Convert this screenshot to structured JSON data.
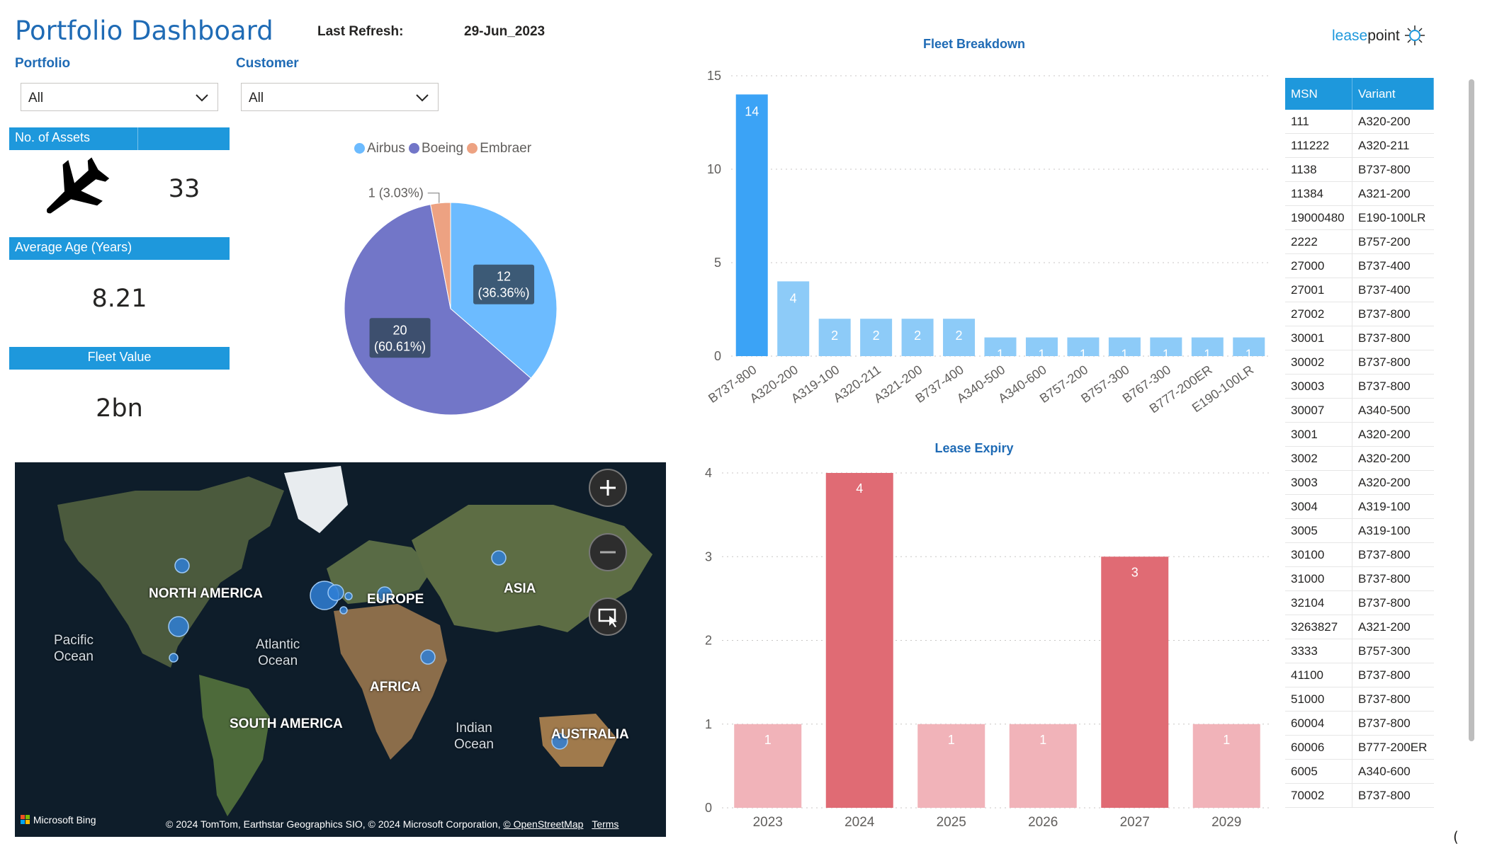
{
  "header": {
    "title": "Portfolio Dashboard",
    "refresh_label": "Last Refresh:",
    "refresh_value": "29-Jun_2023"
  },
  "slicers": {
    "portfolio": {
      "label": "Portfolio",
      "value": "All"
    },
    "customer": {
      "label": "Customer",
      "value": "All"
    }
  },
  "kpis": {
    "assets": {
      "label": "No. of Assets",
      "value": "33"
    },
    "age": {
      "label": "Average Age (Years)",
      "value": "8.21"
    },
    "fleet_value": {
      "label": "Fleet Value",
      "value": "2bn"
    }
  },
  "logo": {
    "part1": "lease",
    "part2": "point"
  },
  "colors": {
    "accent": "#1e98dc",
    "title": "#1f6bb5",
    "airbus": "#6cbbff",
    "boeing": "#7276c8",
    "embraer": "#eda282",
    "fleet_highlight": "#3ba3f6",
    "fleet_bar": "#8dcbf8",
    "lease_dark": "#e06b74",
    "lease_light": "#f1b3b9"
  },
  "chart_data": [
    {
      "type": "pie",
      "legend": [
        "Airbus",
        "Boeing",
        "Embraer"
      ],
      "values": [
        12,
        20,
        1
      ],
      "labels": [
        "12 (36.36%)",
        "20 (60.61%)",
        "1 (3.03%)"
      ]
    },
    {
      "type": "bar",
      "title": "Fleet Breakdown",
      "categories": [
        "B737-800",
        "A320-200",
        "A319-100",
        "A320-211",
        "A321-200",
        "B737-400",
        "A340-500",
        "A340-600",
        "B757-200",
        "B757-300",
        "B767-300",
        "B777-200ER",
        "E190-100LR"
      ],
      "values": [
        14,
        4,
        2,
        2,
        2,
        2,
        1,
        1,
        1,
        1,
        1,
        1,
        1
      ],
      "ylim": [
        0,
        15
      ],
      "yticks": [
        "0",
        "5",
        "10",
        "15"
      ]
    },
    {
      "type": "bar",
      "title": "Lease Expiry",
      "categories": [
        "2023",
        "2024",
        "2025",
        "2026",
        "2027",
        "2029"
      ],
      "values": [
        1,
        4,
        1,
        1,
        3,
        1
      ],
      "ylim": [
        0,
        4
      ],
      "yticks": [
        "0",
        "1",
        "2",
        "3",
        "4"
      ]
    }
  ],
  "table": {
    "headers": [
      "MSN",
      "Variant"
    ],
    "rows": [
      [
        "111",
        "A320-200"
      ],
      [
        "111222",
        "A320-211"
      ],
      [
        "1138",
        "B737-800"
      ],
      [
        "11384",
        "A321-200"
      ],
      [
        "19000480",
        "E190-100LR"
      ],
      [
        "2222",
        "B757-200"
      ],
      [
        "27000",
        "B737-400"
      ],
      [
        "27001",
        "B737-400"
      ],
      [
        "27002",
        "B737-800"
      ],
      [
        "30001",
        "B737-800"
      ],
      [
        "30002",
        "B737-800"
      ],
      [
        "30003",
        "B737-800"
      ],
      [
        "30007",
        "A340-500"
      ],
      [
        "3001",
        "A320-200"
      ],
      [
        "3002",
        "A320-200"
      ],
      [
        "3003",
        "A320-200"
      ],
      [
        "3004",
        "A319-100"
      ],
      [
        "3005",
        "A319-100"
      ],
      [
        "30100",
        "B737-800"
      ],
      [
        "31000",
        "B737-800"
      ],
      [
        "32104",
        "B737-800"
      ],
      [
        "3263827",
        "A321-200"
      ],
      [
        "3333",
        "B757-300"
      ],
      [
        "41100",
        "B737-800"
      ],
      [
        "51000",
        "B737-800"
      ],
      [
        "60004",
        "B737-800"
      ],
      [
        "60006",
        "B777-200ER"
      ],
      [
        "6005",
        "A340-600"
      ],
      [
        "70002",
        "B737-800"
      ]
    ]
  },
  "map": {
    "labels": {
      "north_america": "NORTH AMERICA",
      "europe": "EUROPE",
      "asia": "ASIA",
      "africa": "AFRICA",
      "south_america": "SOUTH AMERICA",
      "australia": "AUSTRALIA"
    },
    "oceans": {
      "pacific": "Pacific\nOcean",
      "atlantic": "Atlantic\nOcean",
      "indian": "Indian\nOcean"
    },
    "bing": "Microsoft Bing",
    "attribution": "© 2024 TomTom, Earthstar Geographics SIO, © 2024 Microsoft Corporation,",
    "osm": "© OpenStreetMap",
    "terms": "Terms",
    "zoom_in_icon": "plus-icon",
    "zoom_out_icon": "minus-icon",
    "select_icon": "select-region-icon"
  }
}
